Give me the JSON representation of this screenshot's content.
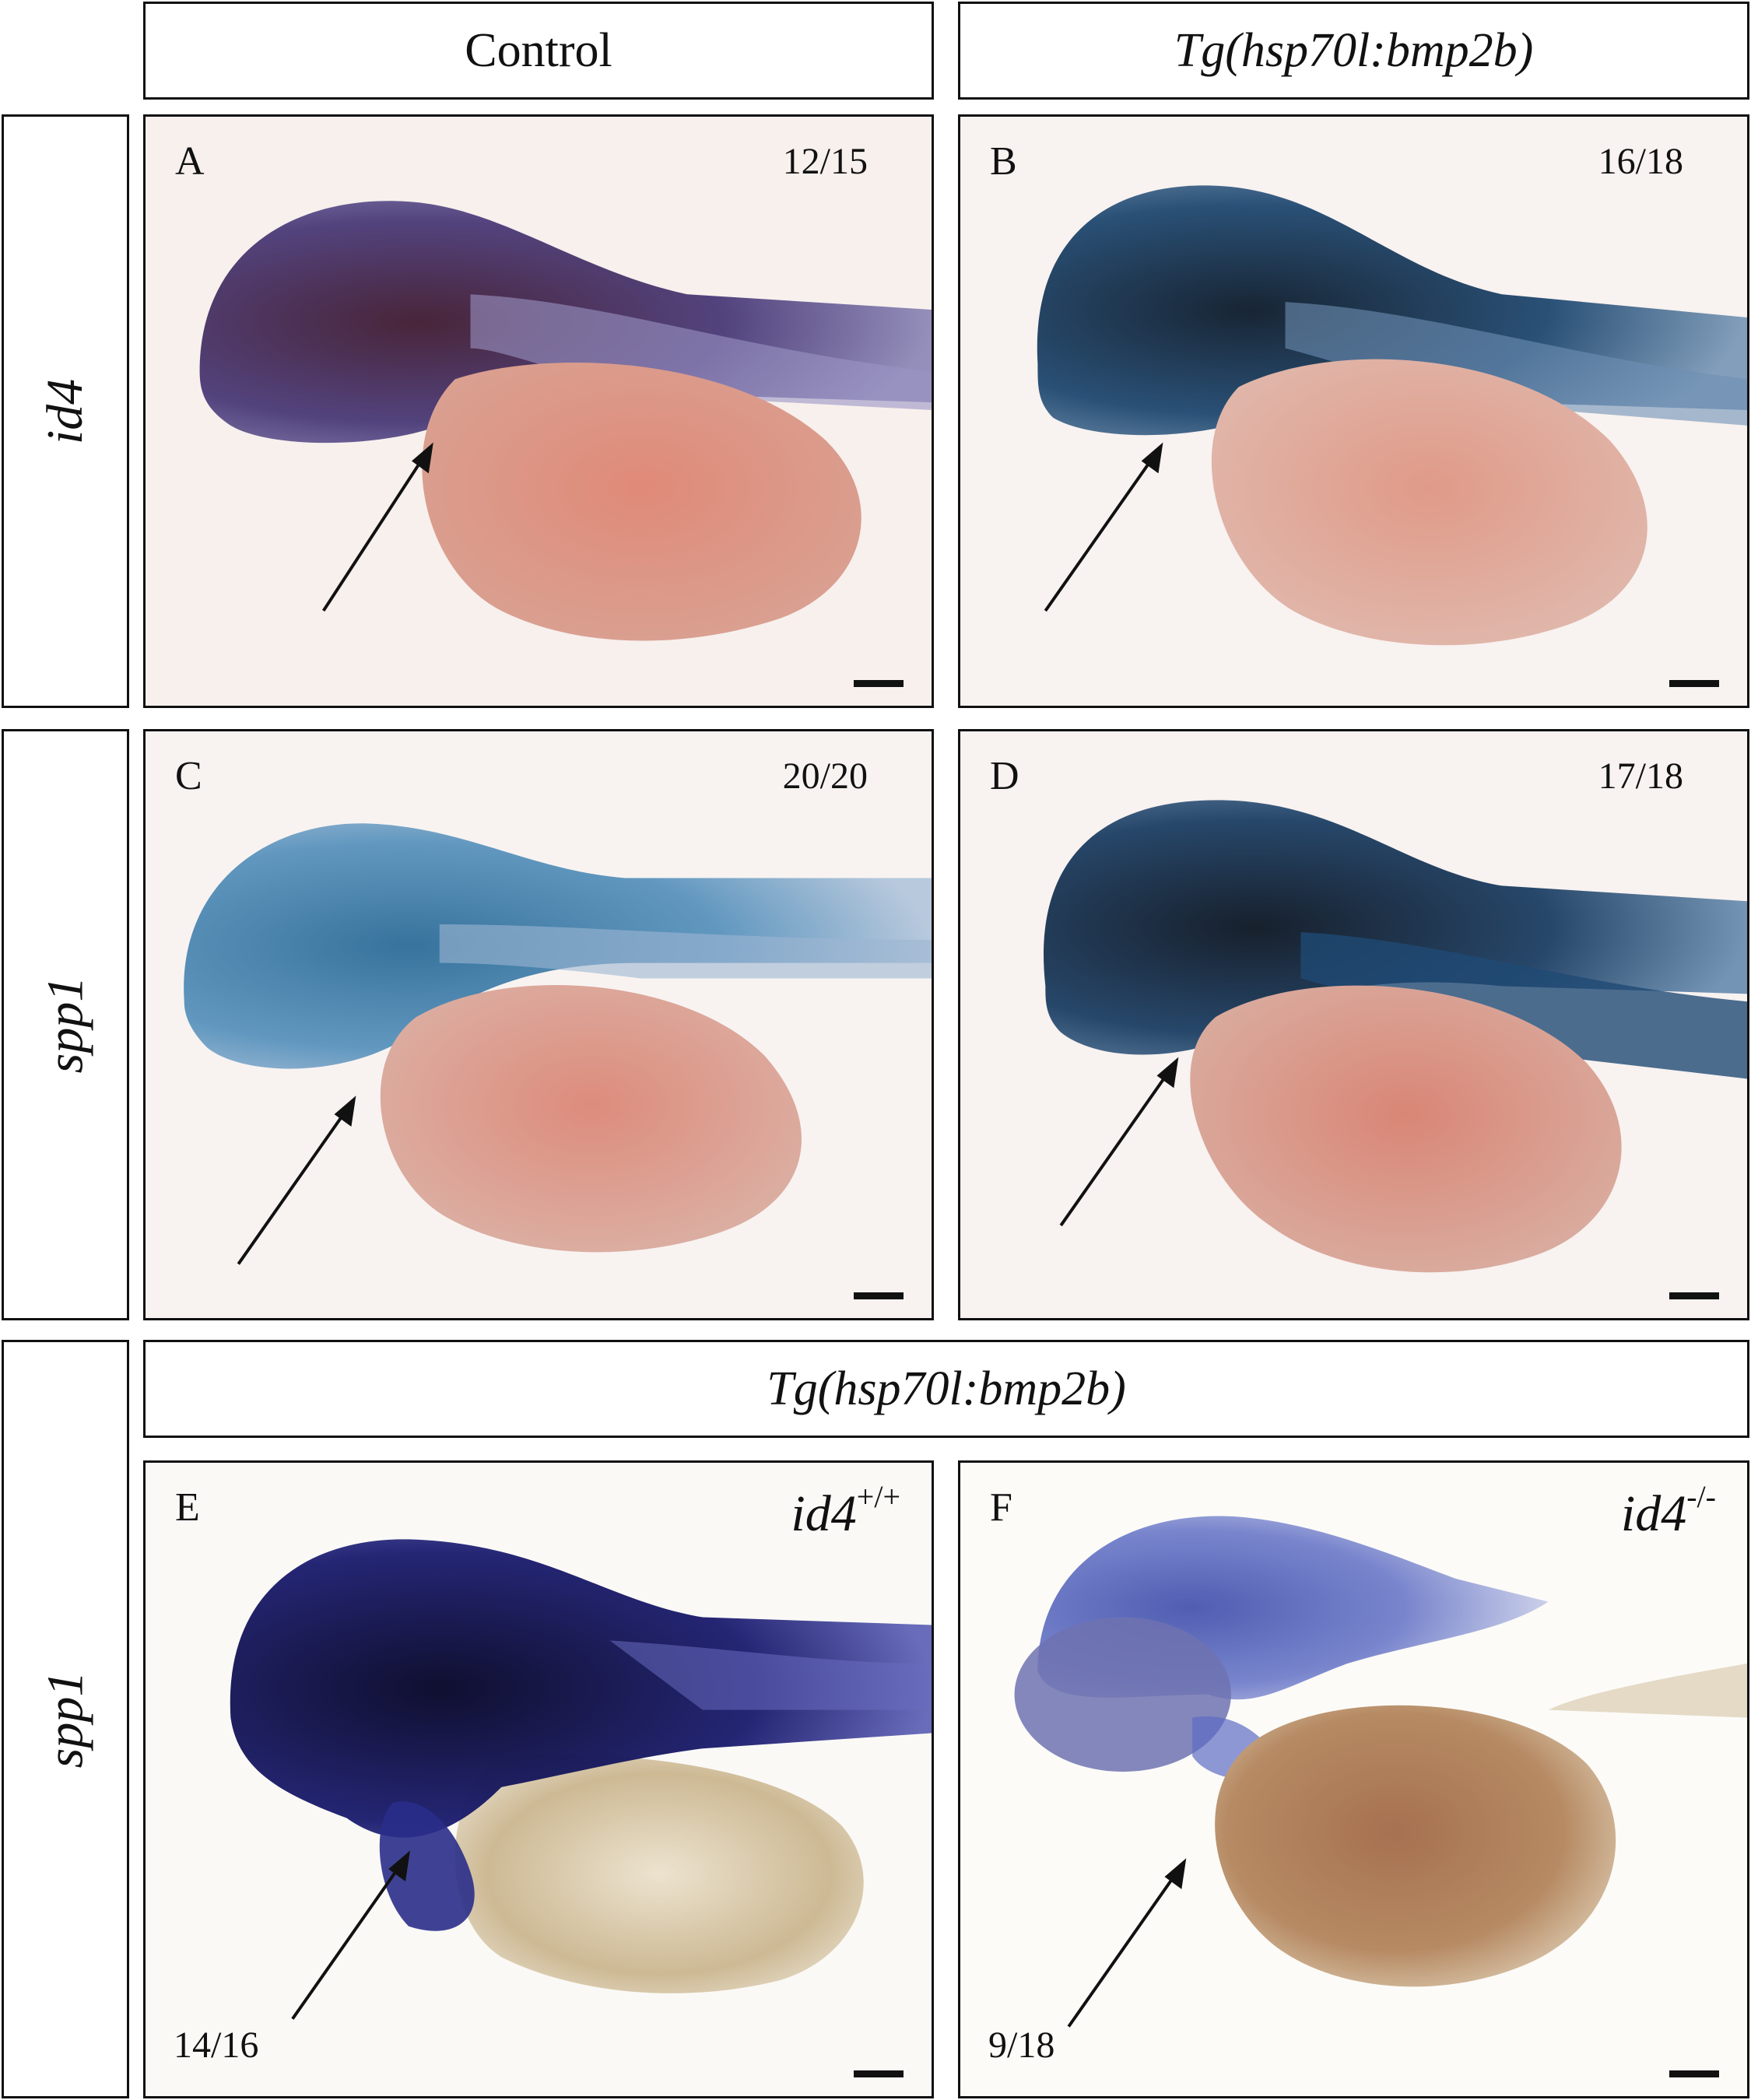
{
  "columns": {
    "control": "Control",
    "transgenic": "Tg(hsp70l:bmp2b)"
  },
  "rows": {
    "row1": "id4",
    "row2": "spp1",
    "row3": "spp1"
  },
  "section3_header": "Tg(hsp70l:bmp2b)",
  "panels": [
    {
      "letter": "A",
      "count": "12/15",
      "stain_color": "#3f1c3c"
    },
    {
      "letter": "B",
      "count": "16/18",
      "stain_color": "#12263f"
    },
    {
      "letter": "C",
      "count": "20/20",
      "stain_color": "#2f6f9a"
    },
    {
      "letter": "D",
      "count": "17/18",
      "stain_color": "#0f2033"
    },
    {
      "letter": "E",
      "count": "14/16",
      "genotype_base": "id4",
      "genotype_sup": "+/+",
      "stain_color": "#0c0d3a"
    },
    {
      "letter": "F",
      "count": "9/18",
      "genotype_base": "id4",
      "genotype_sup": "-/-",
      "stain_color": "#4f5fc0"
    }
  ],
  "colors": {
    "yolk_pink": "#d98a78",
    "yolk_tan": "#c8b28c",
    "yolk_brown": "#b07a50",
    "border": "#111111"
  }
}
